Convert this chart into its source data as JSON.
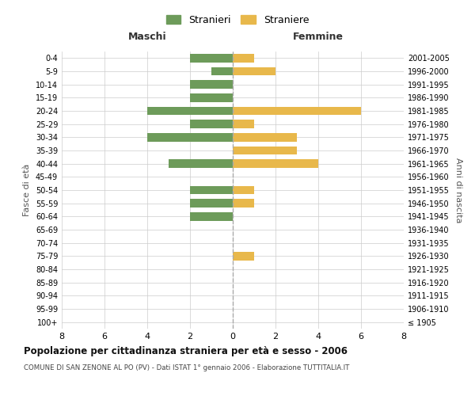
{
  "age_groups": [
    "100+",
    "95-99",
    "90-94",
    "85-89",
    "80-84",
    "75-79",
    "70-74",
    "65-69",
    "60-64",
    "55-59",
    "50-54",
    "45-49",
    "40-44",
    "35-39",
    "30-34",
    "25-29",
    "20-24",
    "15-19",
    "10-14",
    "5-9",
    "0-4"
  ],
  "birth_years": [
    "≤ 1905",
    "1906-1910",
    "1911-1915",
    "1916-1920",
    "1921-1925",
    "1926-1930",
    "1931-1935",
    "1936-1940",
    "1941-1945",
    "1946-1950",
    "1951-1955",
    "1956-1960",
    "1961-1965",
    "1966-1970",
    "1971-1975",
    "1976-1980",
    "1981-1985",
    "1986-1990",
    "1991-1995",
    "1996-2000",
    "2001-2005"
  ],
  "maschi": [
    0,
    0,
    0,
    0,
    0,
    0,
    0,
    0,
    2,
    2,
    2,
    0,
    3,
    0,
    4,
    2,
    4,
    2,
    2,
    1,
    2
  ],
  "femmine": [
    0,
    0,
    0,
    0,
    0,
    1,
    0,
    0,
    0,
    1,
    1,
    0,
    4,
    3,
    3,
    1,
    6,
    0,
    0,
    2,
    1
  ],
  "male_color": "#6d9b5a",
  "female_color": "#e8b84b",
  "background_color": "#ffffff",
  "grid_color": "#cccccc",
  "title": "Popolazione per cittadinanza straniera per età e sesso - 2006",
  "subtitle": "COMUNE DI SAN ZENONE AL PO (PV) - Dati ISTAT 1° gennaio 2006 - Elaborazione TUTTITALIA.IT",
  "xlabel_left": "Maschi",
  "xlabel_right": "Femmine",
  "ylabel_left": "Fasce di età",
  "ylabel_right": "Anni di nascita",
  "legend_male": "Stranieri",
  "legend_female": "Straniere",
  "xlim": 8,
  "dashed_line_color": "#aaaaaa"
}
